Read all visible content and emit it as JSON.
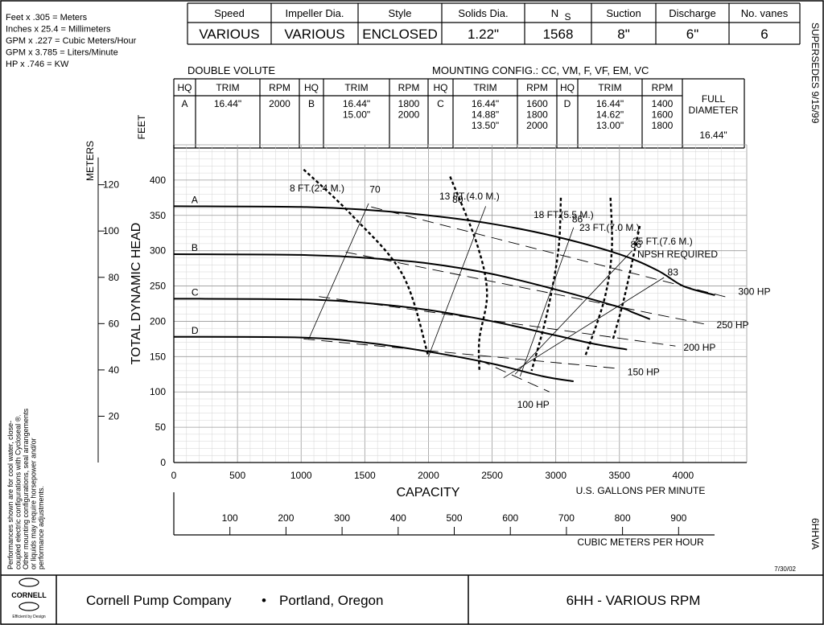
{
  "conversions": [
    "Feet x .305 = Meters",
    "Inches x 25.4 = Millimeters",
    "GPM x .227 = Cubic Meters/Hour",
    "GPM x 3.785 = Liters/Minute",
    "HP x .746 = KW"
  ],
  "spec_header": {
    "columns": [
      {
        "label": "Speed",
        "value": "VARIOUS"
      },
      {
        "label": "Impeller Dia.",
        "value": "VARIOUS"
      },
      {
        "label": "Style",
        "value": "ENCLOSED"
      },
      {
        "label": "Solids Dia.",
        "value": "1.22\""
      },
      {
        "label": "N",
        "sub": "S",
        "value": "1568"
      },
      {
        "label": "Suction",
        "value": "8\""
      },
      {
        "label": "Discharge",
        "value": "6\""
      },
      {
        "label": "No. vanes",
        "value": "6"
      }
    ]
  },
  "volute": "DOUBLE VOLUTE",
  "mounting": "MOUNTING CONFIG.:   CC,  VM,  F,  VF,  EM,  VC",
  "trim_table": {
    "headers": {
      "hq": "HQ",
      "trim": "TRIM",
      "rpm": "RPM"
    },
    "groups": [
      {
        "hq": "A",
        "trims": [
          "16.44\""
        ],
        "rpms": [
          "2000"
        ]
      },
      {
        "hq": "B",
        "trims": [
          "16.44\"",
          "15.00\""
        ],
        "rpms": [
          "1800",
          "2000"
        ]
      },
      {
        "hq": "C",
        "trims": [
          "16.44\"",
          "14.88\"",
          "13.50\""
        ],
        "rpms": [
          "1600",
          "1800",
          "2000"
        ]
      },
      {
        "hq": "D",
        "trims": [
          "16.44\"",
          "14.62\"",
          "13.00\""
        ],
        "rpms": [
          "1400",
          "1600",
          "1800"
        ]
      }
    ],
    "full_diameter_lines": [
      "FULL",
      "DIAMETER"
    ],
    "full_diameter_value": "16.44\""
  },
  "side_right_top": "SUPERSEDES  9/15/99",
  "side_right_bottom": "6HHVA",
  "side_left_note": [
    "Performances shown are for cool water, close-",
    "coupled electric configurations with Cycloseal ®.",
    "Other mounting configurations, seal arrangements",
    "or liquids may require horsepower and/or",
    "performance adjustments."
  ],
  "date_code": "7/30/02",
  "footer": {
    "logo_text": "CORNELL",
    "logo_sub": "Efficient by Design",
    "company": "Cornell Pump Company",
    "bullet": "•",
    "location": "Portland, Oregon",
    "model": "6HH - VARIOUS RPM"
  },
  "chart_data": {
    "type": "line",
    "title": "",
    "xlabel": "CAPACITY",
    "xunit": "U.S. GALLONS PER MINUTE",
    "ylabel": "TOTAL DYNAMIC HEAD",
    "y_axis_feet_label": "FEET",
    "y_axis_meters_label": "METERS",
    "x2_label": "CUBIC METERS PER HOUR",
    "xlim": [
      0,
      4500
    ],
    "ylim": [
      0,
      450
    ],
    "xticks": [
      0,
      500,
      1000,
      1500,
      2000,
      2500,
      3000,
      3500,
      4000
    ],
    "yticks": [
      0,
      50,
      100,
      150,
      200,
      250,
      300,
      350,
      400
    ],
    "meter_ticks": [
      20,
      40,
      60,
      80,
      100,
      120
    ],
    "m3h_ticks": [
      100,
      200,
      300,
      400,
      500,
      600,
      700,
      800,
      900
    ],
    "grid": true,
    "head_curves": [
      {
        "name": "A",
        "x": [
          0,
          1000,
          1500,
          2000,
          2500,
          3000,
          3500,
          3800,
          4000,
          4250
        ],
        "y": [
          363,
          362,
          358,
          350,
          338,
          320,
          295,
          272,
          250,
          237
        ]
      },
      {
        "name": "B",
        "x": [
          0,
          1000,
          1500,
          2000,
          2500,
          3000,
          3500,
          3600,
          3740
        ],
        "y": [
          295,
          294,
          290,
          282,
          267,
          245,
          220,
          213,
          203
        ]
      },
      {
        "name": "C",
        "x": [
          0,
          1000,
          1500,
          2000,
          2500,
          3000,
          3300,
          3560
        ],
        "y": [
          232,
          231,
          226,
          216,
          200,
          180,
          168,
          160
        ]
      },
      {
        "name": "D",
        "x": [
          0,
          1000,
          1500,
          2000,
          2500,
          2900,
          3140
        ],
        "y": [
          178,
          177,
          170,
          157,
          140,
          122,
          115
        ]
      }
    ],
    "npsh_curves": [
      {
        "label": "8 FT.(2.4 M.)",
        "x": [
          1020,
          1400,
          1800,
          2000
        ],
        "y": [
          415,
          350,
          265,
          150
        ]
      },
      {
        "label": "13 FT.(4.0 M.)",
        "x": [
          2170,
          2380,
          2460,
          2400,
          2400
        ],
        "y": [
          405,
          310,
          240,
          175,
          130
        ]
      },
      {
        "label": "18 FT.(5.5 M.)",
        "x": [
          3040,
          3020,
          2930,
          2810
        ],
        "y": [
          375,
          300,
          210,
          130
        ]
      },
      {
        "label": "23 FT.(7.0 M.)",
        "x": [
          3430,
          3440,
          3380,
          3230
        ],
        "y": [
          375,
          300,
          230,
          150
        ]
      },
      {
        "label": "25 FT.(7.6 M.)",
        "x": [
          3660,
          3540,
          3450
        ],
        "y": [
          335,
          235,
          175
        ]
      }
    ],
    "npsh_note": "NPSH REQUIRED",
    "efficiency_lines": [
      {
        "label": "70",
        "x": [
          1060,
          1530
        ],
        "y": [
          175,
          367
        ]
      },
      {
        "label": "80",
        "x": [
          2000,
          2450
        ],
        "y": [
          150,
          363
        ]
      },
      {
        "label": "86",
        "x": [
          2720,
          3140
        ],
        "y": [
          122,
          333
        ]
      },
      {
        "label": "86",
        "x": [
          2680,
          3600
        ],
        "y": [
          125,
          300
        ]
      },
      {
        "label": "83",
        "x": [
          2590,
          3850
        ],
        "y": [
          120,
          262
        ]
      }
    ],
    "efficiency_label_pos": [
      [
        1580,
        382
      ],
      [
        2230,
        368
      ],
      [
        3170,
        340
      ],
      [
        3630,
        304
      ],
      [
        3920,
        265
      ]
    ],
    "horsepower_lines": [
      {
        "label": "300 HP",
        "x": [
          1550,
          4370
        ],
        "y": [
          362,
          233
        ]
      },
      {
        "label": "250 HP",
        "x": [
          1350,
          4200
        ],
        "y": [
          298,
          195
        ]
      },
      {
        "label": "200 HP",
        "x": [
          1140,
          3940
        ],
        "y": [
          235,
          165
        ]
      },
      {
        "label": "150 HP",
        "x": [
          1020,
          3500
        ],
        "y": [
          175,
          133
        ]
      },
      {
        "label": "100 HP",
        "x": [
          2400,
          2950
        ],
        "y": [
          145,
          100
        ]
      }
    ],
    "curve_label_x": 100
  }
}
